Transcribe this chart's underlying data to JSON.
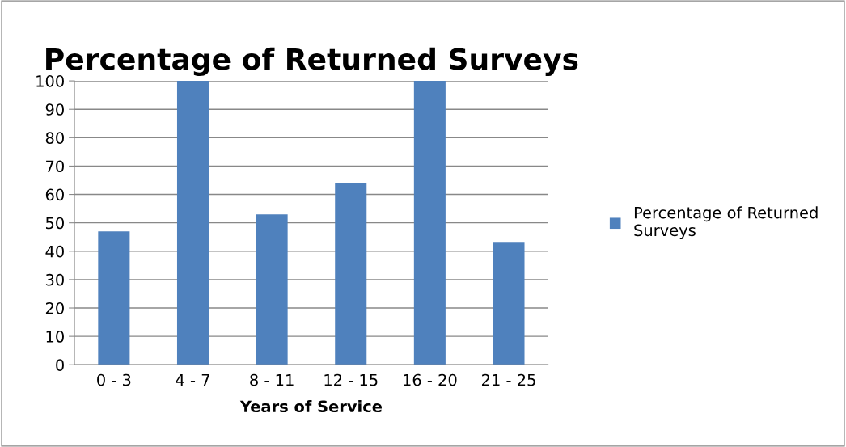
{
  "chart_data": {
    "type": "bar",
    "title": "Percentage of Returned Surveys",
    "xlabel": "Years of Service",
    "categories": [
      "0 - 3",
      "4 - 7",
      "8 - 11",
      "12 - 15",
      "16 - 20",
      "21 - 25"
    ],
    "series": [
      {
        "name": "Percentage of Returned Surveys",
        "color": "#4f81bd",
        "values": [
          47,
          100,
          53,
          64,
          100,
          43
        ]
      }
    ],
    "ylim": [
      0,
      100
    ],
    "yticks": [
      0,
      10,
      20,
      30,
      40,
      50,
      60,
      70,
      80,
      90,
      100
    ],
    "grid": "y",
    "legend": "right"
  }
}
